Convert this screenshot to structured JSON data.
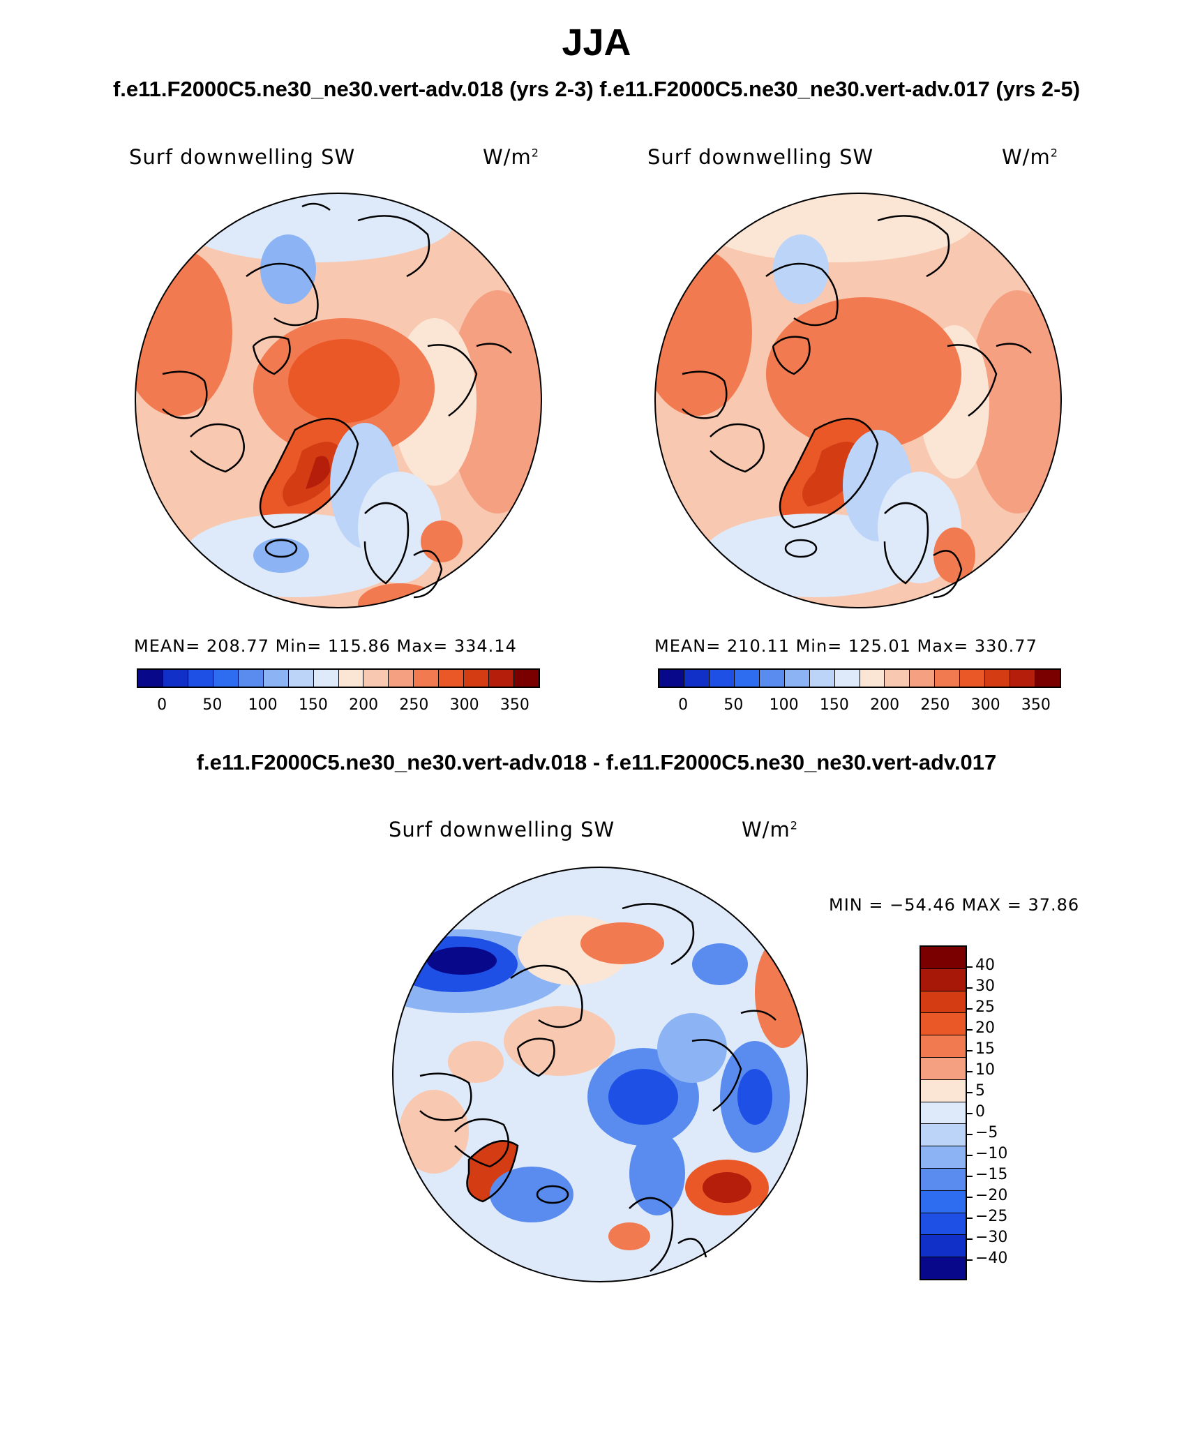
{
  "title": "JJA",
  "top_subtitle": "f.e11.F2000C5.ne30_ne30.vert-adv.018 (yrs 2-3) f.e11.F2000C5.ne30_ne30.vert-adv.017 (yrs 2-5)",
  "diff_subtitle": "f.e11.F2000C5.ne30_ne30.vert-adv.018 - f.e11.F2000C5.ne30_ne30.vert-adv.017",
  "colors": {
    "abs_scale": [
      "#08088a",
      "#1030c8",
      "#1e50e6",
      "#2e6cf0",
      "#5a8cf0",
      "#8cb4f4",
      "#bcd4f8",
      "#deeafa",
      "#fbe6d6",
      "#f8c8b0",
      "#f6a082",
      "#f27a50",
      "#ea5828",
      "#d43c14",
      "#b41e0a",
      "#7a0000"
    ],
    "diff_scale": [
      "#7a0000",
      "#a81808",
      "#d43c14",
      "#ea5828",
      "#f27a50",
      "#f6a082",
      "#fbe6d6",
      "#deeafa",
      "#bcd4f8",
      "#8cb4f4",
      "#5a8cf0",
      "#2e6cf0",
      "#1e50e6",
      "#1030c8",
      "#08088a"
    ]
  },
  "panels": [
    {
      "id": "case-018",
      "variable": "Surf downwelling SW",
      "units": "W/m",
      "units_sup": "2",
      "stats": "MEAN= 208.77   Min= 115.86   Max= 334.14",
      "colorbar_labels": [
        "0",
        "50",
        "100",
        "150",
        "200",
        "250",
        "300",
        "350"
      ]
    },
    {
      "id": "case-017",
      "variable": "Surf downwelling SW",
      "units": "W/m",
      "units_sup": "2",
      "stats": "MEAN= 210.11   Min= 125.01   Max= 330.77",
      "colorbar_labels": [
        "0",
        "50",
        "100",
        "150",
        "200",
        "250",
        "300",
        "350"
      ]
    }
  ],
  "diff_panel": {
    "variable": "Surf downwelling SW",
    "units": "W/m",
    "units_sup": "2",
    "stats": "MIN = −54.46 MAX =  37.86",
    "colorbar_labels": [
      "40",
      "30",
      "25",
      "20",
      "15",
      "10",
      "5",
      "0",
      "−5",
      "−10",
      "−15",
      "−20",
      "−25",
      "−30",
      "−40"
    ]
  }
}
